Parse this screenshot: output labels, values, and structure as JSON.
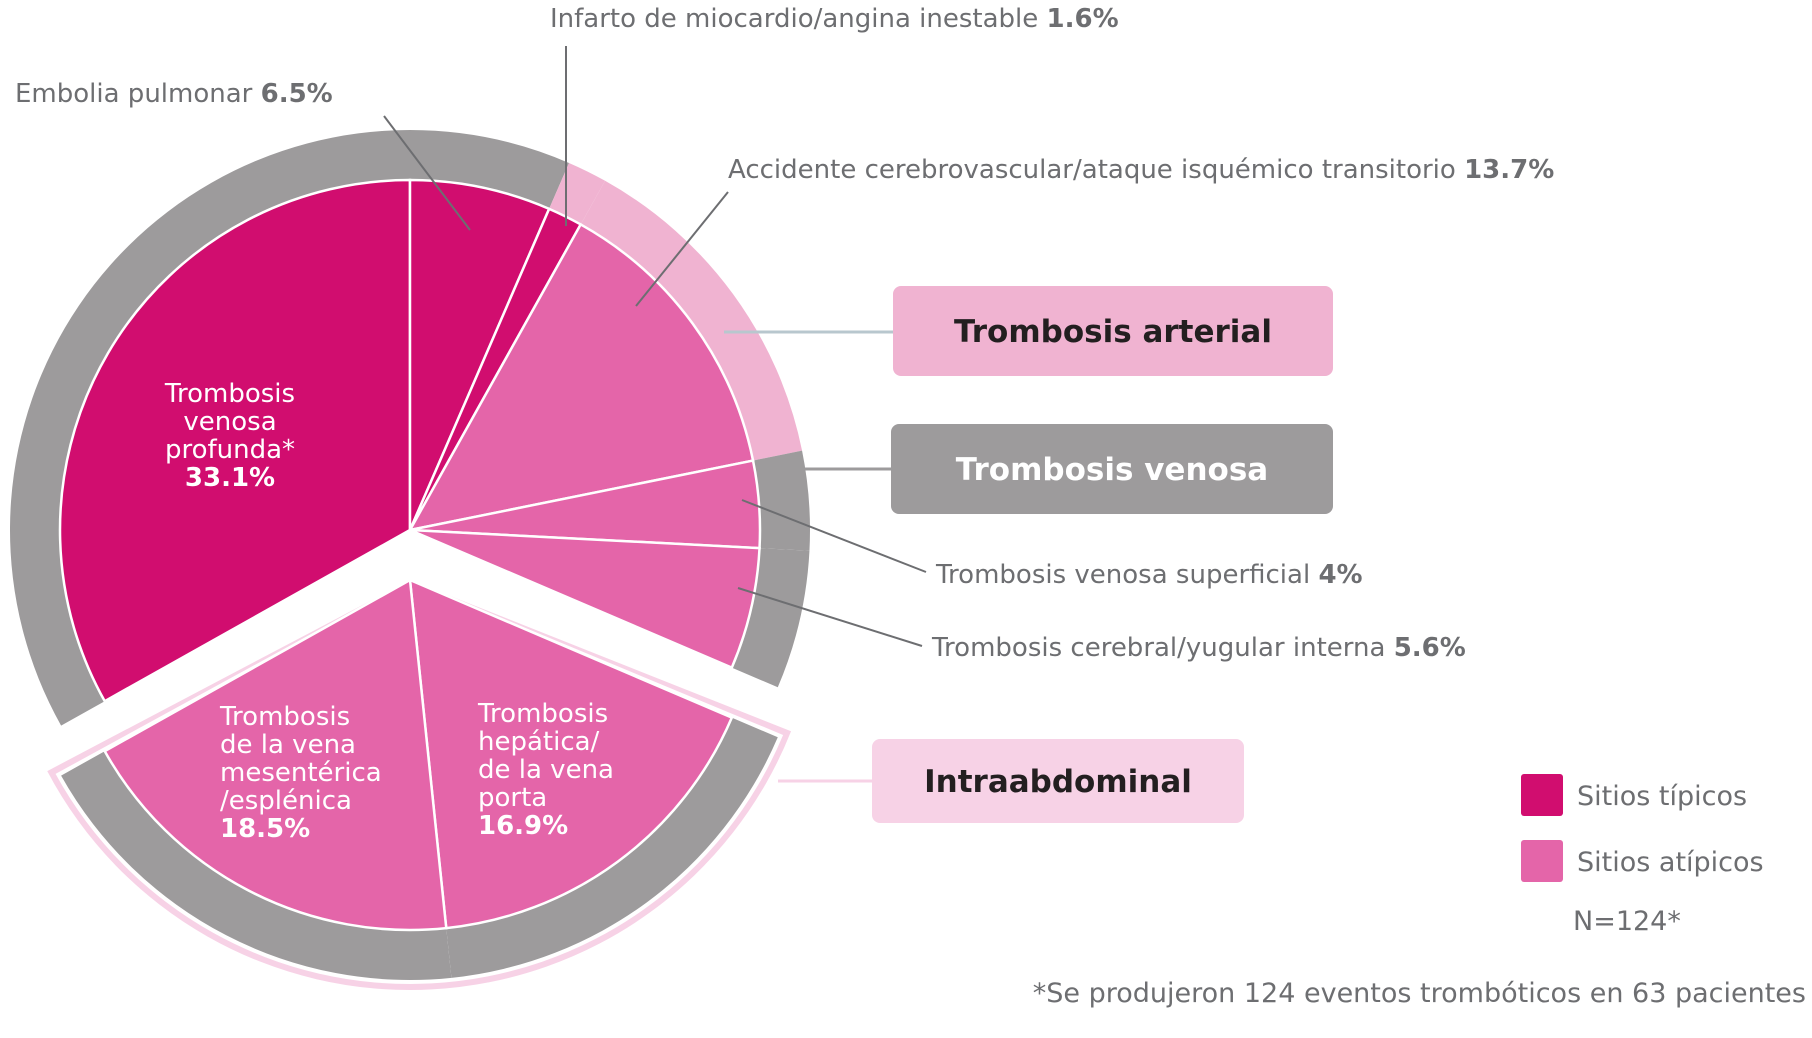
{
  "chart_data": {
    "type": "pie",
    "note_n": "N=124*",
    "footnote": "*Se produjeron 124 eventos trombóticos en 63 pacientes",
    "slices": [
      {
        "label": "Trombosis venosa profunda*",
        "value": 33.1,
        "value_label": "33.1%",
        "group": "venosa",
        "site": "typical",
        "label_lines": [
          "Trombosis",
          "venosa",
          "profunda*"
        ]
      },
      {
        "label": "Embolia pulmonar",
        "value": 6.5,
        "value_label": "6.5%",
        "group": "venosa",
        "site": "typical"
      },
      {
        "label": "Infarto de miocardio/angina inestable",
        "value": 1.6,
        "value_label": "1.6%",
        "group": "arterial",
        "site": "typical"
      },
      {
        "label": "Accidente cerebrovascular/ataque isquémico transitorio",
        "value": 13.7,
        "value_label": "13.7%",
        "group": "arterial",
        "site": "atypical"
      },
      {
        "label": "Trombosis venosa superficial",
        "value": 4,
        "value_label": "4%",
        "group": "venosa",
        "site": "atypical"
      },
      {
        "label": "Trombosis cerebral/yugular interna",
        "value": 5.6,
        "value_label": "5.6%",
        "group": "venosa",
        "site": "atypical"
      },
      {
        "label": "Trombosis hepática/de la vena porta",
        "value": 16.9,
        "value_label": "16.9%",
        "group": "intraabdominal",
        "site": "atypical",
        "label_lines": [
          "Trombosis",
          "hepática/",
          "de la vena",
          "porta"
        ]
      },
      {
        "label": "Trombosis de la vena mesentérica/esplénica",
        "value": 18.5,
        "value_label": "18.5%",
        "group": "intraabdominal",
        "site": "atypical",
        "label_lines": [
          "Trombosis",
          "de la vena",
          "mesentérica",
          "/esplénica"
        ]
      }
    ],
    "groups": [
      {
        "key": "arterial",
        "label": "Trombosis arterial",
        "color": "#f0b3d1",
        "text_color": "#231f20"
      },
      {
        "key": "venosa",
        "label": "Trombosis venosa",
        "color": "#9d9b9c",
        "text_color": "#ffffff"
      },
      {
        "key": "intraabdominal",
        "label": "Intraabdominal",
        "color": "#f7d2e6",
        "text_color": "#231f20"
      }
    ],
    "legend": [
      {
        "label": "Sitios típicos",
        "color": "#d10d6f"
      },
      {
        "label": "Sitios atípicos",
        "color": "#e465a9"
      }
    ],
    "colors": {
      "typical": "#d10d6f",
      "atypical": "#e465a9",
      "ring_venosa": "#9d9b9c",
      "ring_arterial": "#f0b3d1",
      "intra_outline": "#f7d2e6"
    }
  }
}
